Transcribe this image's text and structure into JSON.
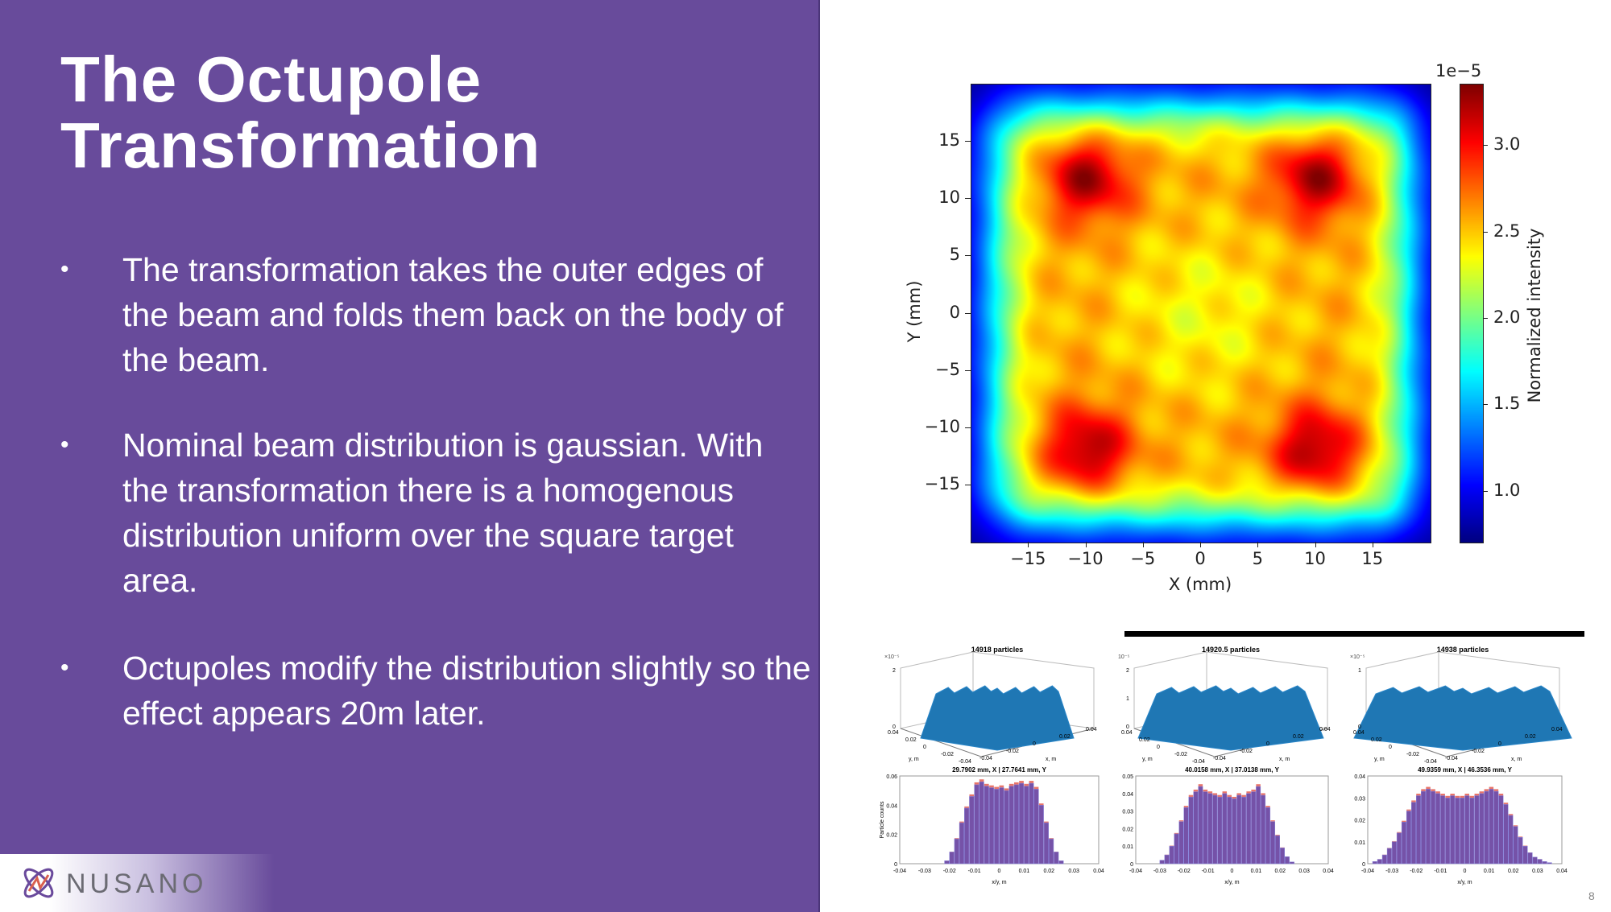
{
  "slide": {
    "title_line1": "The Octupole",
    "title_line2": "Transformation",
    "bullet_symbol": "•",
    "bullets": [
      "The transformation takes the outer edges of the beam and folds them back on the body of the beam.",
      "Nominal beam distribution is gaussian. With the transformation there is a homogenous distribution uniform over the square target area.",
      "Octupoles modify the distribution slightly so the effect appears 20m later."
    ],
    "page_number": "8",
    "logo_text": "NUSANO"
  },
  "colors": {
    "panel": "#684b9b",
    "white": "#ffffff"
  },
  "chart_data": [
    {
      "type": "heatmap",
      "xlabel": "X (mm)",
      "ylabel": "Y (mm)",
      "xlim": [
        -20,
        20
      ],
      "ylim": [
        -20,
        20
      ],
      "xticks": [
        "−15",
        "−10",
        "−5",
        "0",
        "5",
        "10",
        "15"
      ],
      "xtick_values": [
        -15,
        -10,
        -5,
        0,
        5,
        10,
        15
      ],
      "yticks": [
        "15",
        "10",
        "5",
        "0",
        "−5",
        "−10",
        "−15"
      ],
      "ytick_values": [
        15,
        10,
        5,
        0,
        -5,
        -10,
        -15
      ],
      "colorbar": {
        "label": "Normalized intensity",
        "scale": "1e−5",
        "range": [
          0.706,
          3.354
        ],
        "ticks": [
          "3.0",
          "2.5",
          "2.0",
          "1.5",
          "1.0"
        ],
        "tick_values": [
          3.0,
          2.5,
          2.0,
          1.5,
          1.0
        ],
        "colormap": "jet"
      },
      "description_values": {
        "plateau": 2.6,
        "corner_peak": 3.3,
        "background": 0.75,
        "edge_halfwidth_mm": 18,
        "hotspots_mm": [
          [
            -10,
            12
          ],
          [
            10,
            12
          ],
          [
            -10,
            -12
          ],
          [
            10,
            -12
          ]
        ]
      }
    },
    {
      "type": "bar3d",
      "title": "14918 particles",
      "zscale": "×10⁻⁵",
      "zticks": [
        "0",
        "2"
      ],
      "yticks": [
        "0.04",
        "0.02",
        "0",
        "-0.02",
        "-0.04"
      ],
      "xticks": [
        "-0.04",
        "-0.02",
        "0",
        "0.02",
        "0.04"
      ],
      "xlabel": "x, m",
      "ylabel": "y, m",
      "spread": 0.022
    },
    {
      "type": "bar3d",
      "title": "14920.5 particles",
      "zscale": "10⁻⁵",
      "zticks": [
        "0",
        "1",
        "2"
      ],
      "yticks": [
        "0.04",
        "0.02",
        "0",
        "-0.02",
        "-0.04"
      ],
      "xticks": [
        "-0.04",
        "-0.02",
        "0",
        "0.02",
        "0.04"
      ],
      "xlabel": "x, m",
      "ylabel": "y, m",
      "spread": 0.03
    },
    {
      "type": "bar3d",
      "title": "14938 particles",
      "zscale": "×10⁻⁵",
      "zticks": [
        "0",
        "1"
      ],
      "yticks": [
        "0.04",
        "0.02",
        "0",
        "-0.02",
        "-0.04"
      ],
      "xticks": [
        "-0.04",
        "-0.02",
        "0",
        "0.02",
        "0.04"
      ],
      "xlabel": "x, m",
      "ylabel": "y, m",
      "spread": 0.038
    },
    {
      "type": "bar",
      "title": "29.7902 mm, X | 27.7641 mm, Y",
      "xlabel": "x/y, m",
      "ylabel": "Particle counts",
      "xlim": [
        -0.04,
        0.04
      ],
      "ylim": [
        0,
        0.06
      ],
      "yticks": [
        "0",
        "0.02",
        "0.04",
        "0.06"
      ],
      "ytick_values": [
        0,
        0.02,
        0.04,
        0.06
      ],
      "xticks": [
        "-0.04",
        "-0.03",
        "-0.02",
        "-0.01",
        "0",
        "0.01",
        "0.02",
        "0.03",
        "0.04"
      ],
      "values": [
        0,
        0,
        0,
        0,
        0,
        0,
        0,
        0,
        0,
        0.002,
        0.008,
        0.017,
        0.028,
        0.038,
        0.046,
        0.054,
        0.056,
        0.053,
        0.052,
        0.051,
        0.052,
        0.05,
        0.053,
        0.054,
        0.055,
        0.053,
        0.055,
        0.051,
        0.04,
        0.028,
        0.017,
        0.008,
        0.002,
        0,
        0,
        0,
        0,
        0,
        0,
        0
      ]
    },
    {
      "type": "bar",
      "title": "40.0158 mm, X | 37.0138 mm, Y",
      "xlabel": "x/y, m",
      "ylabel": "",
      "xlim": [
        -0.04,
        0.04
      ],
      "ylim": [
        0,
        0.05
      ],
      "yticks": [
        "0",
        "0.01",
        "0.02",
        "0.03",
        "0.04",
        "0.05"
      ],
      "ytick_values": [
        0,
        0.01,
        0.02,
        0.03,
        0.04,
        0.05
      ],
      "xticks": [
        "-0.04",
        "-0.03",
        "-0.02",
        "-0.01",
        "0",
        "0.01",
        "0.02",
        "0.03",
        "0.04"
      ],
      "values": [
        0,
        0,
        0,
        0,
        0,
        0.002,
        0.005,
        0.01,
        0.017,
        0.024,
        0.032,
        0.038,
        0.041,
        0.044,
        0.041,
        0.04,
        0.039,
        0.038,
        0.04,
        0.038,
        0.037,
        0.039,
        0.038,
        0.04,
        0.041,
        0.044,
        0.039,
        0.032,
        0.024,
        0.016,
        0.009,
        0.004,
        0.001,
        0,
        0,
        0,
        0,
        0,
        0,
        0
      ]
    },
    {
      "type": "bar",
      "title": "49.9359 mm, X | 46.3536 mm, Y",
      "xlabel": "x/y, m",
      "ylabel": "",
      "xlim": [
        -0.04,
        0.04
      ],
      "ylim": [
        0,
        0.04
      ],
      "yticks": [
        "0",
        "0.01",
        "0.02",
        "0.03",
        "0.04"
      ],
      "ytick_values": [
        0,
        0.01,
        0.02,
        0.03,
        0.04
      ],
      "xticks": [
        "-0.04",
        "-0.03",
        "-0.02",
        "-0.01",
        "0",
        "0.01",
        "0.02",
        "0.03",
        "0.04"
      ],
      "values": [
        0,
        0.001,
        0.002,
        0.004,
        0.007,
        0.01,
        0.014,
        0.019,
        0.024,
        0.028,
        0.031,
        0.033,
        0.034,
        0.033,
        0.032,
        0.031,
        0.03,
        0.031,
        0.03,
        0.03,
        0.031,
        0.03,
        0.031,
        0.032,
        0.033,
        0.034,
        0.033,
        0.031,
        0.027,
        0.022,
        0.017,
        0.012,
        0.008,
        0.005,
        0.003,
        0.002,
        0.001,
        0.0005,
        0,
        0
      ]
    }
  ]
}
